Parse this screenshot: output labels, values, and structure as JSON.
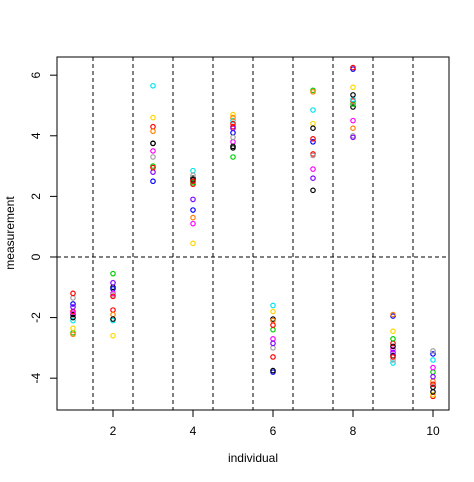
{
  "chart_data": {
    "type": "scatter",
    "title": "",
    "xlabel": "individual",
    "ylabel": "measurement",
    "xlim": [
      0.6,
      10.4
    ],
    "ylim": [
      -5.05,
      6.6
    ],
    "x_ticks": [
      2,
      4,
      6,
      8,
      10
    ],
    "x_tick_labels": [
      "2",
      "4",
      "6",
      "8",
      "10"
    ],
    "y_ticks": [
      -4,
      -2,
      0,
      2,
      4,
      6
    ],
    "y_tick_labels": [
      "-4",
      "-2",
      "0",
      "2",
      "4",
      "6"
    ],
    "reference_lines": {
      "horizontal": [
        0
      ],
      "vertical": [
        1.5,
        2.5,
        3.5,
        4.5,
        5.5,
        6.5,
        7.5,
        8.5,
        9.5
      ],
      "style": "dashed"
    },
    "grid": false,
    "legend": "none",
    "marker": "open circle",
    "replicate_colors": [
      "#000000",
      "#ff0000",
      "#00cd00",
      "#0000ff",
      "#00e5ee",
      "#ff00ff",
      "#ffd700",
      "#a0a0a0",
      "#ff7f00",
      "#7f00ff"
    ],
    "series": [
      {
        "x": 1,
        "values": [
          -1.9,
          -1.8,
          -2.5,
          -1.55,
          -2.1,
          -1.85,
          -2.35,
          -1.35,
          -2.55,
          -1.65,
          -2.0,
          -1.2
        ]
      },
      {
        "x": 2,
        "values": [
          -1.0,
          -1.75,
          -0.55,
          -1.05,
          -2.1,
          -1.2,
          -2.6,
          -1.25,
          -1.9,
          -0.85,
          -2.05,
          -1.3
        ]
      },
      {
        "x": 3,
        "values": [
          3.75,
          4.3,
          3.0,
          2.5,
          5.65,
          3.5,
          4.6,
          3.3,
          4.15,
          2.8,
          3.75,
          2.95
        ]
      },
      {
        "x": 4,
        "values": [
          2.6,
          2.4,
          2.45,
          1.55,
          2.85,
          1.1,
          0.45,
          2.7,
          1.3,
          1.9,
          2.55,
          2.5
        ]
      },
      {
        "x": 5,
        "values": [
          3.6,
          4.3,
          3.3,
          4.1,
          4.5,
          3.8,
          4.7,
          3.95,
          4.6,
          4.25,
          3.65,
          4.4
        ]
      },
      {
        "x": 6,
        "values": [
          -2.05,
          -3.3,
          -2.4,
          -3.8,
          -1.6,
          -2.7,
          -1.8,
          -3.0,
          -2.1,
          -2.85,
          -3.75,
          -2.25
        ]
      },
      {
        "x": 7,
        "values": [
          2.2,
          3.4,
          5.5,
          3.8,
          4.85,
          2.9,
          4.4,
          3.35,
          5.45,
          2.6,
          4.25,
          3.9
        ]
      },
      {
        "x": 8,
        "values": [
          4.95,
          5.15,
          5.05,
          6.2,
          5.2,
          4.5,
          5.6,
          4.0,
          4.25,
          3.95,
          5.35,
          6.25
        ]
      },
      {
        "x": 9,
        "values": [
          -3.25,
          -2.85,
          -2.7,
          -1.95,
          -3.5,
          -3.05,
          -2.45,
          -3.4,
          -1.9,
          -3.15,
          -2.95,
          -3.3
        ]
      },
      {
        "x": 10,
        "values": [
          -4.3,
          -4.6,
          -3.8,
          -3.2,
          -3.4,
          -3.65,
          -4.55,
          -3.1,
          -4.1,
          -3.95,
          -4.45,
          -4.2
        ]
      }
    ]
  }
}
